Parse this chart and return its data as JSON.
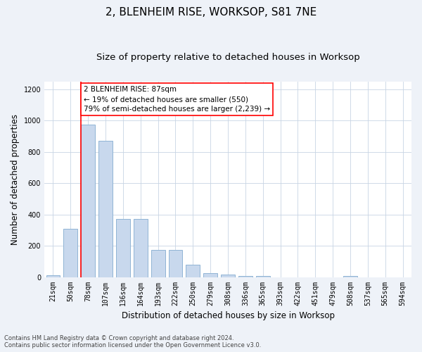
{
  "title_line1": "2, BLENHEIM RISE, WORKSOP, S81 7NE",
  "title_line2": "Size of property relative to detached houses in Worksop",
  "xlabel": "Distribution of detached houses by size in Worksop",
  "ylabel": "Number of detached properties",
  "bin_labels": [
    "21sqm",
    "50sqm",
    "78sqm",
    "107sqm",
    "136sqm",
    "164sqm",
    "193sqm",
    "222sqm",
    "250sqm",
    "279sqm",
    "308sqm",
    "336sqm",
    "365sqm",
    "393sqm",
    "422sqm",
    "451sqm",
    "479sqm",
    "508sqm",
    "537sqm",
    "565sqm",
    "594sqm"
  ],
  "bar_heights": [
    10,
    310,
    975,
    870,
    370,
    370,
    175,
    175,
    80,
    25,
    15,
    5,
    5,
    0,
    0,
    0,
    0,
    5,
    0,
    0,
    0
  ],
  "bar_color": "#c8d8ed",
  "bar_edge_color": "#90b4d4",
  "annotation_text": "2 BLENHEIM RISE: 87sqm\n← 19% of detached houses are smaller (550)\n79% of semi-detached houses are larger (2,239) →",
  "annotation_box_color": "white",
  "annotation_box_edge_color": "red",
  "ylim": [
    0,
    1250
  ],
  "yticks": [
    0,
    200,
    400,
    600,
    800,
    1000,
    1200
  ],
  "footer_line1": "Contains HM Land Registry data © Crown copyright and database right 2024.",
  "footer_line2": "Contains public sector information licensed under the Open Government Licence v3.0.",
  "background_color": "#eef2f8",
  "plot_bg_color": "#ffffff",
  "grid_color": "#c8d4e4",
  "title_fontsize": 11,
  "subtitle_fontsize": 9.5,
  "axis_label_fontsize": 8.5,
  "tick_fontsize": 7,
  "annot_fontsize": 7.5,
  "footer_fontsize": 6,
  "red_line_x": 1.6
}
